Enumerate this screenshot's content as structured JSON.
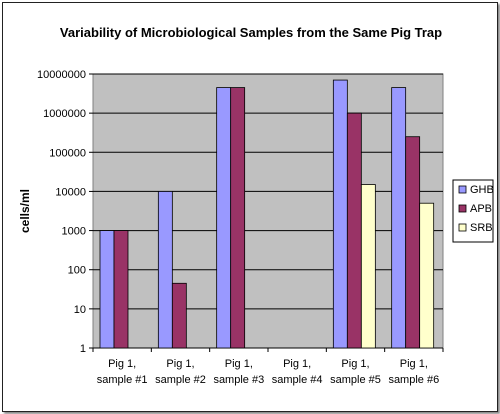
{
  "chart_data": {
    "type": "bar",
    "title": "Variability of Microbiological Samples from the Same Pig Trap",
    "ylabel": "cells/ml",
    "xlabel": "",
    "yscale": "log",
    "ylim": [
      1,
      10000000
    ],
    "yticks": [
      "10000000",
      "1000000",
      "100000",
      "10000",
      "1000",
      "100",
      "10",
      "1"
    ],
    "categories": [
      [
        "Pig 1,",
        "sample #1"
      ],
      [
        "Pig 1,",
        "sample #2"
      ],
      [
        "Pig 1,",
        "sample #3"
      ],
      [
        "Pig 1,",
        "sample #4"
      ],
      [
        "Pig 1,",
        "sample #5"
      ],
      [
        "Pig 1,",
        "sample #6"
      ]
    ],
    "series": [
      {
        "name": "GHB",
        "color": "#9999ff",
        "values": [
          1000,
          10000,
          4500000,
          null,
          7000000,
          4500000
        ]
      },
      {
        "name": "APB",
        "color": "#993366",
        "values": [
          1000,
          45,
          4500000,
          null,
          1000000,
          250000
        ]
      },
      {
        "name": "SRB",
        "color": "#ffffcc",
        "values": [
          null,
          null,
          null,
          null,
          15000,
          5000
        ]
      }
    ],
    "plot_background": "#c0c0c0",
    "grid": true,
    "legend_position": "right"
  }
}
